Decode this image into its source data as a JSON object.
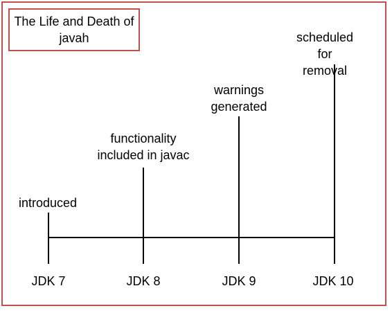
{
  "title": "The Life and Death of javah",
  "events": [
    {
      "release": "JDK 7",
      "label": "introduced"
    },
    {
      "release": "JDK 8",
      "label": "functionality\nincluded in javac"
    },
    {
      "release": "JDK 9",
      "label": "warnings\ngenerated"
    },
    {
      "release": "JDK 10",
      "label": "scheduled for\nremoval"
    }
  ],
  "colors": {
    "border": "#c0504d",
    "line": "#000000"
  }
}
